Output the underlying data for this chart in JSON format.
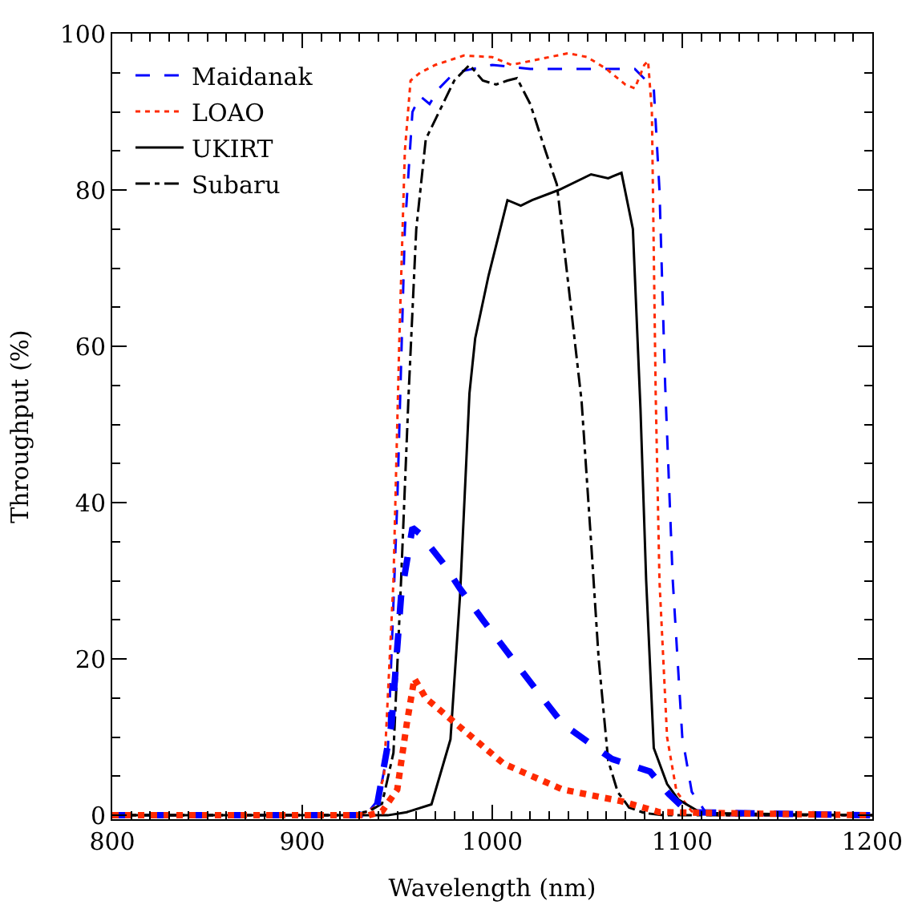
{
  "chart_data": {
    "type": "line",
    "xlabel": "Wavelength (nm)",
    "ylabel": "Throughput (%)",
    "xlim": [
      800,
      1200
    ],
    "xticks": [
      800,
      900,
      1000,
      1100,
      1200
    ],
    "ylim": [
      -0.5,
      100
    ],
    "yticks": [
      0,
      20,
      40,
      60,
      80,
      100
    ],
    "legend": "top left",
    "marker": "none",
    "series": [
      {
        "name": "Maidanak",
        "color": "#0000ff",
        "line_style": "dashed",
        "x": [
          800,
          925,
          935,
          940,
          945,
          950,
          954,
          958,
          962,
          967,
          972,
          980,
          990,
          1000,
          1020,
          1040,
          1060,
          1075,
          1085,
          1088,
          1091,
          1095,
          1100,
          1105,
          1112,
          1120,
          1200
        ],
        "values": [
          0,
          0,
          0.5,
          2,
          8,
          40,
          75,
          90,
          92,
          91,
          93,
          95,
          95.5,
          96,
          95.5,
          95.5,
          95.5,
          95.5,
          93,
          80,
          55,
          30,
          10,
          3,
          0.5,
          0,
          0
        ]
      },
      {
        "name": "LOAO",
        "color": "#ff2a00",
        "line_style": "dotted",
        "x": [
          800,
          930,
          938,
          943,
          948,
          951,
          954,
          957,
          962,
          970,
          985,
          1000,
          1010,
          1020,
          1040,
          1050,
          1060,
          1070,
          1075,
          1080,
          1082,
          1084,
          1086,
          1088,
          1092,
          1097,
          1105,
          1115,
          1200
        ],
        "values": [
          0,
          0,
          1,
          5,
          30,
          60,
          85,
          94,
          95,
          96,
          97.2,
          97,
          96,
          96.5,
          97.5,
          97,
          95.5,
          93.5,
          93,
          96,
          96.5,
          90,
          54,
          30,
          10,
          3,
          0.5,
          0,
          0
        ]
      },
      {
        "name": "UKIRT",
        "color": "#000000",
        "line_style": "solid",
        "x": [
          800,
          945,
          955,
          968,
          978,
          983,
          988,
          991,
          998,
          1008,
          1015,
          1021,
          1035,
          1052,
          1061,
          1068,
          1074,
          1078,
          1081,
          1085,
          1092,
          1098,
          1110,
          1200
        ],
        "values": [
          0,
          0,
          0.4,
          1.4,
          9.7,
          28,
          54,
          61,
          69,
          78.7,
          78,
          78.7,
          80,
          82,
          81.5,
          82.2,
          75,
          52,
          30,
          8.6,
          4,
          2,
          0.3,
          0
        ]
      },
      {
        "name": "Subaru",
        "color": "#000000",
        "line_style": "dashdot",
        "x": [
          800,
          920,
          935,
          942,
          948,
          952,
          956,
          960,
          965,
          972,
          980,
          988,
          995,
          1002,
          1008,
          1013,
          1020,
          1028,
          1034,
          1040,
          1047,
          1052,
          1056,
          1061,
          1066,
          1072,
          1080,
          1090,
          1200
        ],
        "values": [
          0,
          0,
          0.5,
          1.5,
          8,
          30,
          54,
          75,
          86.5,
          90,
          94,
          96,
          94,
          93.5,
          94,
          94.3,
          91,
          85,
          80.7,
          68,
          53,
          35,
          20,
          7,
          3,
          1,
          0.3,
          0,
          0
        ]
      },
      {
        "color": "#0000ff",
        "line_style": "dashed",
        "x": [
          800,
          930,
          939,
          947,
          952,
          958,
          962,
          975,
          983,
          995,
          1016,
          1037,
          1063,
          1083,
          1093,
          1103,
          1200
        ],
        "values": [
          0,
          0,
          0.8,
          11.7,
          28,
          36.8,
          36,
          32,
          29,
          25,
          18.3,
          11.7,
          7.2,
          5.6,
          2.7,
          0.4,
          0
        ]
      },
      {
        "color": "#ff2a00",
        "line_style": "dotted",
        "x": [
          800,
          935,
          942,
          950,
          955,
          959,
          965,
          981,
          1006,
          1037,
          1068,
          1088,
          1200
        ],
        "values": [
          0,
          0,
          0.5,
          3.3,
          11.7,
          17.5,
          15,
          11.7,
          6.6,
          3.3,
          1.8,
          0.4,
          0
        ]
      }
    ]
  }
}
